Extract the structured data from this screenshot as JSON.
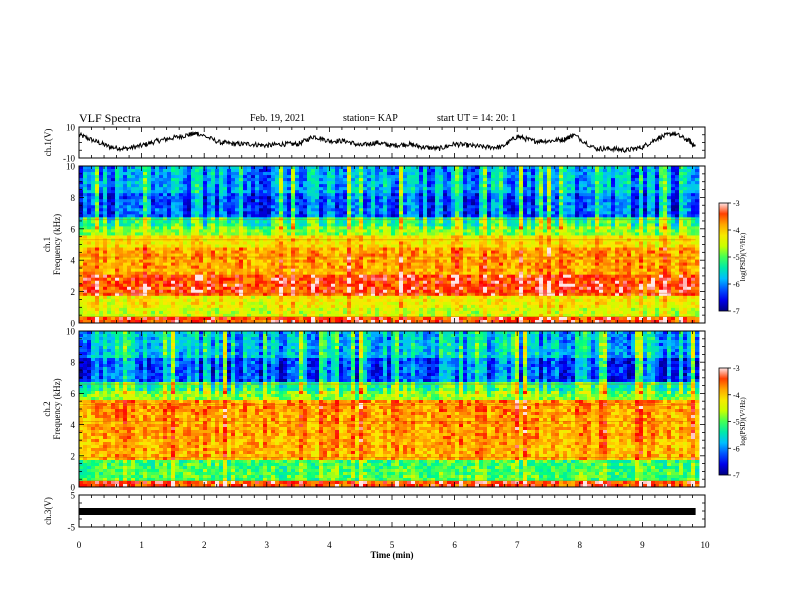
{
  "header": {
    "title": "VLF Spectra",
    "date": "Feb. 19, 2021",
    "station": "station= KAP",
    "start": "start UT =   14: 20: 1"
  },
  "chart_data": [
    {
      "type": "line",
      "id": "ch1-voltage",
      "ylabel": "ch.1(V)",
      "ylim": [
        -10,
        10
      ],
      "y_ticks": [
        "10",
        "-10"
      ],
      "xlim": [
        0,
        10
      ],
      "series_description_values": {
        "x": [
          0,
          0.25,
          0.5,
          0.75,
          1,
          1.25,
          1.5,
          1.75,
          1.9,
          2.25,
          2.5,
          2.75,
          3,
          3.25,
          3.5,
          3.75,
          4,
          4.25,
          4.5,
          4.75,
          5,
          5.25,
          5.5,
          5.75,
          6,
          6.25,
          6.5,
          6.75,
          7,
          7.25,
          7.5,
          7.75,
          7.9,
          8.25,
          8.5,
          8.75,
          9,
          9.25,
          9.5,
          9.75,
          9.85
        ],
        "y": [
          5,
          1,
          -3,
          -4,
          -2,
          1,
          3,
          5,
          6,
          0,
          -1,
          -1,
          -2,
          -1,
          -1,
          4,
          1,
          1,
          -2,
          0,
          -2,
          -1,
          -3,
          -4,
          -1,
          -2,
          -3,
          -3,
          4,
          1,
          1,
          2,
          5,
          -4,
          -4,
          -5,
          -3,
          3,
          6,
          1,
          -3
        ]
      }
    },
    {
      "type": "heatmap",
      "id": "ch1-spectrogram",
      "ylabel_line1": "ch.1",
      "ylabel_line2": "Frequency (kHz)",
      "ylim": [
        0,
        10
      ],
      "y_ticks": [
        "0",
        "2",
        "4",
        "6",
        "8",
        "10"
      ],
      "xlim": [
        0,
        10
      ],
      "colorbar": {
        "label": "log(PSD)(V²/Hz)",
        "range": [
          -7,
          -3
        ],
        "ticks": [
          "-3",
          "-4",
          "-5",
          "-6",
          "-7"
        ]
      }
    },
    {
      "type": "heatmap",
      "id": "ch2-spectrogram",
      "ylabel_line1": "ch.2",
      "ylabel_line2": "Frequency (kHz)",
      "ylim": [
        0,
        10
      ],
      "y_ticks": [
        "0",
        "2",
        "4",
        "6",
        "8",
        "10"
      ],
      "xlim": [
        0,
        10
      ],
      "colorbar": {
        "label": "log(PSD)(V²/Hz)",
        "range": [
          -7,
          -3
        ],
        "ticks": [
          "-3",
          "-4",
          "-5",
          "-6",
          "-7"
        ]
      }
    },
    {
      "type": "line",
      "id": "ch3-voltage",
      "ylabel": "ch.3(V)",
      "ylim": [
        -5,
        5
      ],
      "y_ticks": [
        "5",
        "-5"
      ],
      "xlim": [
        0,
        10
      ],
      "series_description_values": {
        "x": [
          0,
          9.85
        ],
        "y": [
          0,
          0
        ]
      }
    }
  ],
  "x_axis": {
    "label": "Time (min)",
    "ticks": [
      "0",
      "1",
      "2",
      "3",
      "4",
      "5",
      "6",
      "7",
      "8",
      "9",
      "10"
    ]
  },
  "colors": {
    "scale": [
      "#00007f",
      "#0000ff",
      "#00bfff",
      "#00ff80",
      "#ffff00",
      "#ff8000",
      "#ff0000",
      "#ffffff"
    ]
  }
}
